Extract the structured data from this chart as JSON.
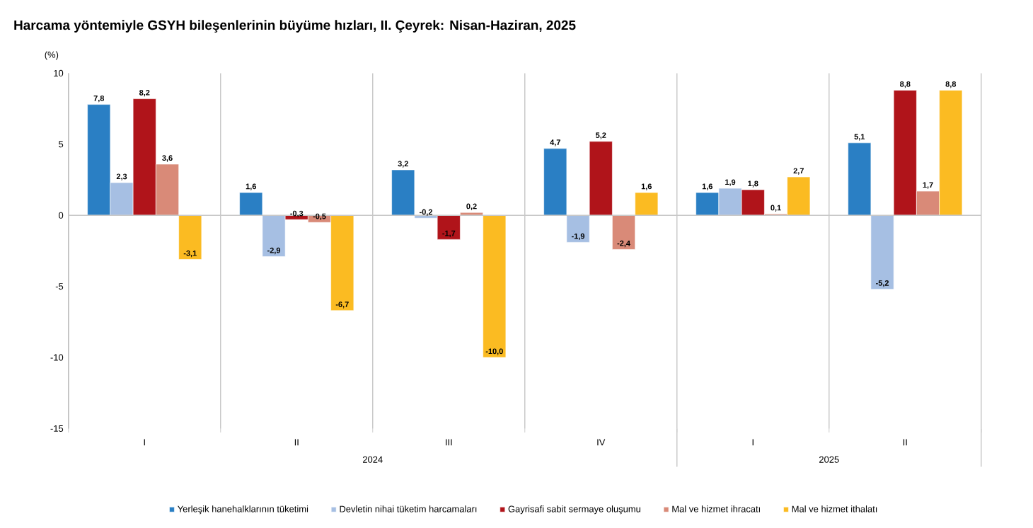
{
  "chart_data": {
    "type": "bar",
    "title": "Harcama yöntemiyle GSYH bileşenlerinin büyüme hızları, II. Çeyrek: Nisan-Haziran, 2025",
    "ylabel": "(%)",
    "categories": [
      "I",
      "II",
      "III",
      "IV",
      "I",
      "II"
    ],
    "annotations": [
      "2024",
      "2025"
    ],
    "series": [
      {
        "name": "Yerleşik hanehalklarının tüketimi",
        "color": "#2a7fc4",
        "values": [
          7.8,
          1.6,
          3.2,
          4.7,
          1.6,
          5.1
        ],
        "value_labels": [
          "7,8",
          "1,6",
          "3,2",
          "4,7",
          "1,6",
          "5,1"
        ]
      },
      {
        "name": "Devletin nihai tüketim harcamaları",
        "color": "#a6bfe3",
        "values": [
          2.3,
          -2.9,
          -0.2,
          -1.9,
          1.9,
          -5.2
        ],
        "value_labels": [
          "2,3",
          "-2,9",
          "-0,2",
          "-1,9",
          "1,9",
          "-5,2"
        ]
      },
      {
        "name": "Gayrisafi sabit sermaye oluşumu",
        "color": "#b0141a",
        "values": [
          8.2,
          -0.3,
          -1.7,
          5.2,
          1.8,
          8.8
        ],
        "value_labels": [
          "8,2",
          "-0,3",
          "-1,7",
          "5,2",
          "1,8",
          "8,8"
        ]
      },
      {
        "name": "Mal ve hizmet ihracatı",
        "color": "#d98a78",
        "values": [
          3.6,
          -0.5,
          0.2,
          -2.4,
          0.1,
          1.7
        ],
        "value_labels": [
          "3,6",
          "-0,5",
          "0,2",
          "-2,4",
          "0,1",
          "1,7"
        ]
      },
      {
        "name": "Mal ve hizmet ithalatı",
        "color": "#fbbb22",
        "values": [
          -3.1,
          -6.7,
          -10.0,
          1.6,
          2.7,
          8.8
        ],
        "value_labels": [
          "-3,1",
          "-6,7",
          "-10,0",
          "1,6",
          "2,7",
          "8,8"
        ]
      }
    ],
    "ylim": [
      -15,
      10
    ],
    "yticks": [
      -15,
      -10,
      -5,
      0,
      5,
      10
    ],
    "ref_lines": [
      {
        "axis": "y",
        "value": 0,
        "color": "#c8c8c8"
      }
    ],
    "grid": "x",
    "legend": "bottom"
  }
}
